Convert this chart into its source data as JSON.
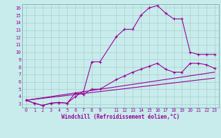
{
  "xlabel": "Windchill (Refroidissement éolien,°C)",
  "bg_color": "#c8ecec",
  "line_color": "#990099",
  "grid_color": "#aacccc",
  "curve1_x": [
    0,
    1,
    2,
    3,
    4,
    5,
    6,
    7,
    8,
    9,
    11,
    12,
    13,
    14,
    15,
    16,
    17,
    18,
    19,
    20,
    21,
    22,
    23
  ],
  "curve1_y": [
    3.5,
    3.1,
    2.8,
    3.1,
    3.2,
    3.1,
    4.0,
    4.7,
    8.7,
    8.7,
    12.1,
    13.1,
    13.1,
    15.0,
    16.0,
    16.3,
    15.3,
    14.5,
    14.5,
    10.0,
    9.7,
    9.7,
    9.7
  ],
  "curve2_x": [
    0,
    1,
    2,
    3,
    4,
    5,
    6,
    7,
    8,
    9,
    11,
    12,
    13,
    14,
    15,
    16,
    17,
    18,
    19,
    20,
    21,
    22,
    23
  ],
  "curve2_y": [
    3.5,
    3.1,
    2.8,
    3.1,
    3.2,
    3.1,
    4.5,
    4.3,
    5.0,
    5.0,
    6.3,
    6.8,
    7.3,
    7.7,
    8.1,
    8.5,
    7.7,
    7.3,
    7.3,
    8.5,
    8.5,
    8.3,
    7.8
  ],
  "line1_x": [
    0,
    23
  ],
  "line1_y": [
    3.5,
    7.3
  ],
  "line2_x": [
    0,
    23
  ],
  "line2_y": [
    3.5,
    6.5
  ],
  "xlim": [
    -0.5,
    23.5
  ],
  "ylim": [
    2.5,
    16.5
  ],
  "xticks": [
    0,
    1,
    2,
    3,
    4,
    5,
    6,
    7,
    8,
    9,
    11,
    12,
    13,
    14,
    15,
    16,
    17,
    18,
    19,
    20,
    21,
    22,
    23
  ],
  "yticks": [
    3,
    4,
    5,
    6,
    7,
    8,
    9,
    10,
    11,
    12,
    13,
    14,
    15,
    16
  ]
}
